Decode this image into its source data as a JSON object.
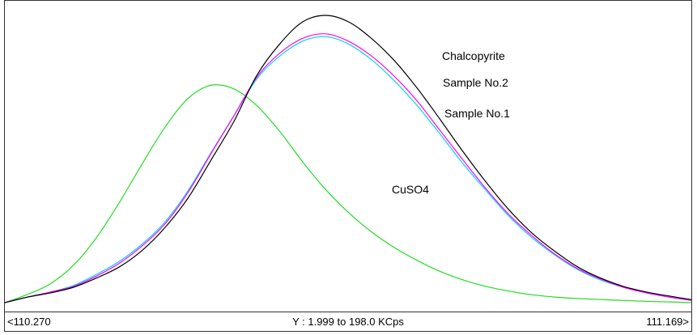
{
  "chart_data": {
    "type": "line",
    "x_min_label": "<110.270",
    "x_max_label": "111.169>",
    "y_range_label": "Y : 1.999 to 198.0 KCps",
    "xlim": [
      110.27,
      111.169
    ],
    "ylim": [
      1.999,
      198.0
    ],
    "x": [
      110.27,
      110.3,
      110.33,
      110.36,
      110.39,
      110.42,
      110.45,
      110.48,
      110.51,
      110.54,
      110.57,
      110.6,
      110.63,
      110.66,
      110.69,
      110.72,
      110.75,
      110.78,
      110.81,
      110.84,
      110.87,
      110.9,
      110.93,
      110.96,
      110.99,
      111.02,
      111.05,
      111.08,
      111.11,
      111.14,
      111.169
    ],
    "series": [
      {
        "name": "Chalcopyrite",
        "color": "#000000",
        "values": [
          2.0,
          5.8,
          8.7,
          12.5,
          18.8,
          26.4,
          37.7,
          53.4,
          73.5,
          99.3,
          125.7,
          157.1,
          178.5,
          193.6,
          198.0,
          193.6,
          182.3,
          167.2,
          148.3,
          127.0,
          105.0,
          84.3,
          65.4,
          49.6,
          37.1,
          26.4,
          18.8,
          13.1,
          9.3,
          6.5,
          4.1
        ]
      },
      {
        "name": "Sample No.2",
        "color": "#ff00ff",
        "values": [
          2.0,
          5.8,
          9.3,
          13.1,
          20.1,
          28.9,
          40.8,
          55.9,
          77.3,
          103.7,
          129.5,
          155.9,
          172.2,
          182.3,
          185.4,
          180.4,
          170.3,
          156.5,
          139.5,
          119.4,
          99.3,
          79.8,
          62.2,
          47.7,
          35.2,
          25.2,
          18.2,
          12.5,
          8.7,
          5.8,
          3.5
        ]
      },
      {
        "name": "Sample No.1",
        "color": "#00d2ff",
        "values": [
          2.0,
          5.8,
          9.3,
          13.7,
          21.3,
          30.2,
          42.0,
          57.2,
          78.5,
          104.3,
          129.5,
          154.7,
          170.3,
          180.4,
          183.5,
          178.5,
          167.8,
          153.4,
          136.4,
          117.0,
          96.8,
          78.5,
          61.0,
          46.4,
          34.6,
          24.6,
          17.5,
          12.5,
          8.7,
          5.8,
          3.5
        ]
      },
      {
        "name": "CuSO4",
        "color": "#22dd22",
        "values": [
          2.0,
          7.7,
          15.0,
          27.6,
          46.4,
          70.4,
          96.8,
          121.9,
          141.4,
          150.3,
          147.8,
          136.4,
          118.8,
          98.0,
          79.2,
          63.5,
          50.3,
          39.6,
          30.8,
          23.3,
          17.5,
          13.1,
          9.9,
          7.4,
          5.8,
          4.8,
          4.1,
          3.5,
          2.9,
          2.5,
          2.0
        ]
      }
    ],
    "annotations": [
      {
        "text": "Chalcopyrite"
      },
      {
        "text": "Sample No.2"
      },
      {
        "text": "Sample No.1"
      },
      {
        "text": "CuSO4"
      }
    ],
    "grid": false,
    "legend": "inline labels"
  }
}
